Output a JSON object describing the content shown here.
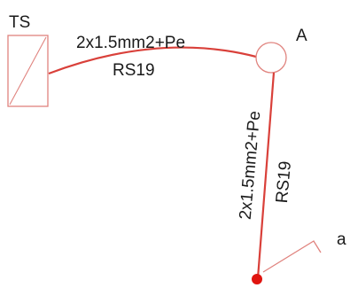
{
  "panel": {
    "label": "TS"
  },
  "node_a": {
    "label": "A"
  },
  "cable_1": {
    "spec": "2x1.5mm2+Pe",
    "type": "RS19"
  },
  "cable_2": {
    "spec": "2x1.5mm2+Pe",
    "type": "RS19"
  },
  "switch": {
    "label": "a"
  },
  "colors": {
    "cable": "#d9403a",
    "outline": "#e0837e",
    "dot": "#e0140f",
    "text": "#1a1a1a"
  }
}
